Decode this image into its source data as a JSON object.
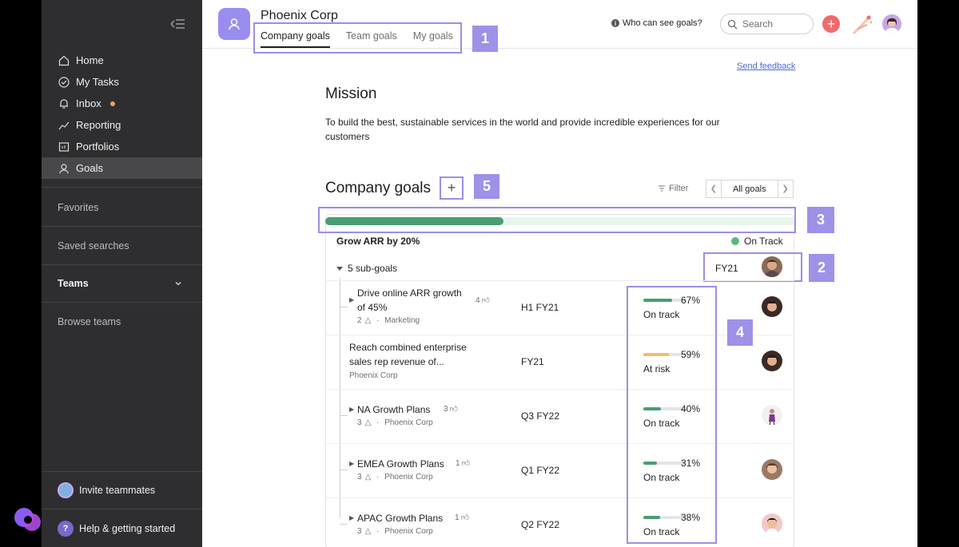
{
  "sidebar": {
    "nav": [
      {
        "label": "Home",
        "icon": "home-icon"
      },
      {
        "label": "My Tasks",
        "icon": "check-circle-icon"
      },
      {
        "label": "Inbox",
        "icon": "bell-icon"
      },
      {
        "label": "Reporting",
        "icon": "trend-icon"
      },
      {
        "label": "Portfolios",
        "icon": "portfolio-icon"
      },
      {
        "label": "Goals",
        "icon": "person-icon"
      }
    ],
    "favorites": "Favorites",
    "saved_searches": "Saved searches",
    "teams": "Teams",
    "browse_teams": "Browse teams",
    "invite": "Invite teammates",
    "help": "Help & getting started",
    "help_glyph": "?"
  },
  "header": {
    "org": "Phoenix Corp",
    "tabs": [
      "Company goals",
      "Team goals",
      "My goals"
    ],
    "who_can_see": "Who can see goals?",
    "search_placeholder": "Search",
    "plus": "+"
  },
  "content": {
    "send_feedback": "Send feedback",
    "mission_title": "Mission",
    "mission_text": "To build the best, sustainable services in the world and provide incredible experiences for our customers",
    "goals_title": "Company goals",
    "add_glyph": "+",
    "filter": "Filter",
    "pager_label": "All goals",
    "main_goal": {
      "name": "Grow ARR by 20%",
      "status": "On Track",
      "progress": 0.38,
      "subgoals": "5 sub-goals",
      "period": "FY21"
    },
    "rows": [
      {
        "title_l1": "Drive online ARR growth",
        "title_l2": "of 45%",
        "likes": "4",
        "comments": "2",
        "team": "Marketing",
        "period": "H1 FY21",
        "pct": "67%",
        "progress": 0.67,
        "status": "On track",
        "color": "#4a9d72",
        "has_caret": true
      },
      {
        "title_l1": "Reach combined enterprise",
        "title_l2": "sales rep revenue of...",
        "likes": "",
        "comments": "",
        "team": "Phoenix Corp",
        "period": "FY21",
        "pct": "59%",
        "progress": 0.59,
        "status": "At risk",
        "color": "#f1bd6c",
        "has_caret": false
      },
      {
        "title_l1": "NA Growth Plans",
        "title_l2": "",
        "likes": "3",
        "comments": "3",
        "team": "Phoenix Corp",
        "period": "Q3 FY22",
        "pct": "40%",
        "progress": 0.4,
        "status": "On track",
        "color": "#4a9d72",
        "has_caret": true
      },
      {
        "title_l1": "EMEA Growth Plans",
        "title_l2": "",
        "likes": "1",
        "comments": "3",
        "team": "Phoenix Corp",
        "period": "Q1 FY22",
        "pct": "31%",
        "progress": 0.31,
        "status": "On track",
        "color": "#4a9d72",
        "has_caret": true
      },
      {
        "title_l1": "APAC Growth Plans",
        "title_l2": "",
        "likes": "1",
        "comments": "3",
        "team": "Phoenix Corp",
        "period": "Q2 FY22",
        "pct": "38%",
        "progress": 0.38,
        "status": "On track",
        "color": "#4a9d72",
        "has_caret": true
      }
    ]
  },
  "annotations": [
    "1",
    "2",
    "3",
    "4",
    "5"
  ]
}
